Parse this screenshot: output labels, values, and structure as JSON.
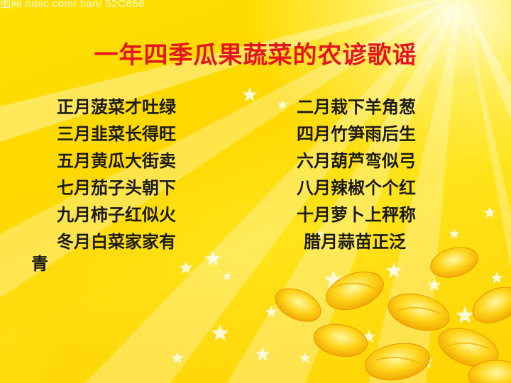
{
  "watermark": "图网 nipic.com/ fian/ 52C666",
  "title": "一年四季瓜果蔬菜的农谚歌谣",
  "left_lines": [
    "正月菠菜才吐绿",
    "三月韭菜长得旺",
    "五月黄瓜大街卖",
    "七月茄子头朝下",
    "九月柿子红似火",
    "冬月白菜家家有"
  ],
  "right_lines": [
    "二月栽下羊角葱",
    "四月竹笋雨后生",
    "六月葫芦弯似弓",
    "八月辣椒个个红",
    "十月萝卜上秤称",
    "腊月蒜苗正泛"
  ],
  "trailing_char": "青",
  "colors": {
    "title": "#e4151f",
    "text": "#1a1a1a",
    "background": "#ffdd00"
  },
  "decorations": [
    "light-rays",
    "stars",
    "yellow-ingots"
  ]
}
